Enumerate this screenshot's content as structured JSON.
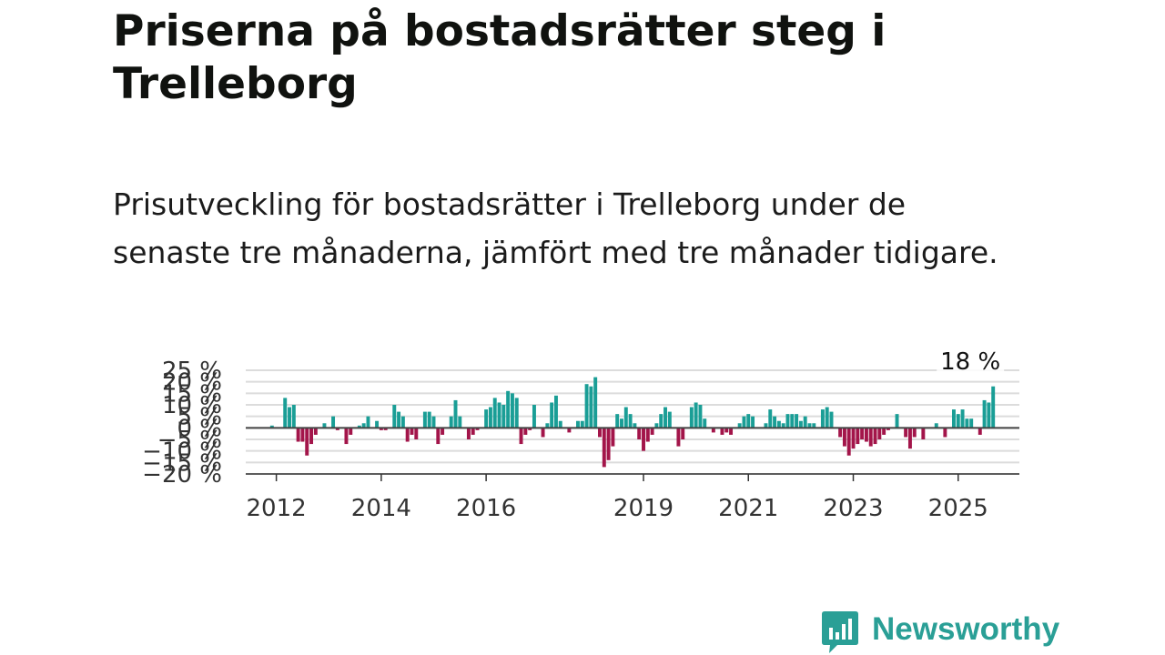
{
  "header": {
    "title": "Priserna på bostadsrätter steg i Trelleborg",
    "subtitle": "Prisutveckling för bostadsrätter i Trelleborg under de senaste tre månaderna, jämfört med tre månader tidigare."
  },
  "chart_data": {
    "type": "bar",
    "title": "Priserna på bostadsrätter steg i Trelleborg",
    "subtitle": "Prisutveckling för bostadsrätter i Trelleborg under de senaste tre månaderna, jämfört med tre månader tidigare.",
    "xlabel": "",
    "ylabel": "",
    "ylim": [
      -20,
      25
    ],
    "y_ticks": [
      -20,
      -15,
      -10,
      -5,
      0,
      5,
      10,
      15,
      20,
      25
    ],
    "y_tick_labels": [
      "−20 %",
      "−15 %",
      "−10 %",
      "−5 %",
      "0 %",
      "5 %",
      "10 %",
      "15 %",
      "20 %",
      "25 %"
    ],
    "x_range": [
      "2011-06",
      "2026-03"
    ],
    "x_ticks": [
      {
        "label": "2012",
        "date": "2012-01"
      },
      {
        "label": "2014",
        "date": "2014-01"
      },
      {
        "label": "2016",
        "date": "2016-01"
      },
      {
        "label": "2019",
        "date": "2019-01"
      },
      {
        "label": "2021",
        "date": "2021-01"
      },
      {
        "label": "2023",
        "date": "2023-01"
      },
      {
        "label": "2025",
        "date": "2025-01"
      }
    ],
    "grid": true,
    "positive_color": "#1a9e96",
    "negative_color": "#a3154a",
    "baseline_color": "#444444",
    "grid_color": "#dcdcdc",
    "annotation": {
      "text": "18 %",
      "date": "2025-04"
    },
    "series": [
      {
        "start": "2011-12",
        "frequency": "monthly",
        "values": [
          1,
          0,
          0,
          13,
          9,
          10,
          -6,
          -6,
          -12,
          -7,
          -3,
          0,
          2,
          0,
          5,
          -1,
          0,
          -7,
          -3,
          0,
          1,
          2,
          5,
          0,
          3,
          -1,
          -1,
          0,
          10,
          7,
          5,
          -6,
          -3,
          -5,
          0,
          7,
          7,
          5,
          -7,
          -3,
          0,
          5,
          12,
          5,
          0,
          -5,
          -3,
          -1,
          0,
          8,
          9,
          13,
          11,
          10,
          16,
          15,
          13,
          -7,
          -3,
          -1,
          10,
          0,
          -4,
          2,
          11,
          14,
          3,
          0,
          -2,
          0,
          3,
          3,
          19,
          18,
          22,
          -4,
          -17,
          -14,
          -8,
          6,
          4,
          9,
          6,
          2,
          -5,
          -10,
          -6,
          -3,
          2,
          6,
          9,
          7,
          0,
          -8,
          -5,
          0,
          9,
          11,
          10,
          4,
          0,
          -2,
          0,
          -3,
          -2,
          -3,
          0,
          2,
          5,
          6,
          5,
          0,
          0,
          2,
          8,
          5,
          3,
          2,
          6,
          6,
          6,
          3,
          5,
          2,
          2,
          0,
          8,
          9,
          7,
          0,
          -4,
          -8,
          -12,
          -9,
          -7,
          -5,
          -6,
          -8,
          -7,
          -5,
          -3,
          -1,
          0,
          6,
          0,
          -4,
          -9,
          -4,
          0,
          -5,
          0,
          0,
          2,
          0,
          -4,
          0,
          8,
          6,
          8,
          4,
          4,
          0,
          -3,
          12,
          11,
          18
        ]
      }
    ]
  },
  "brand": {
    "name": "Newsworthy",
    "color": "#2a9f96"
  }
}
